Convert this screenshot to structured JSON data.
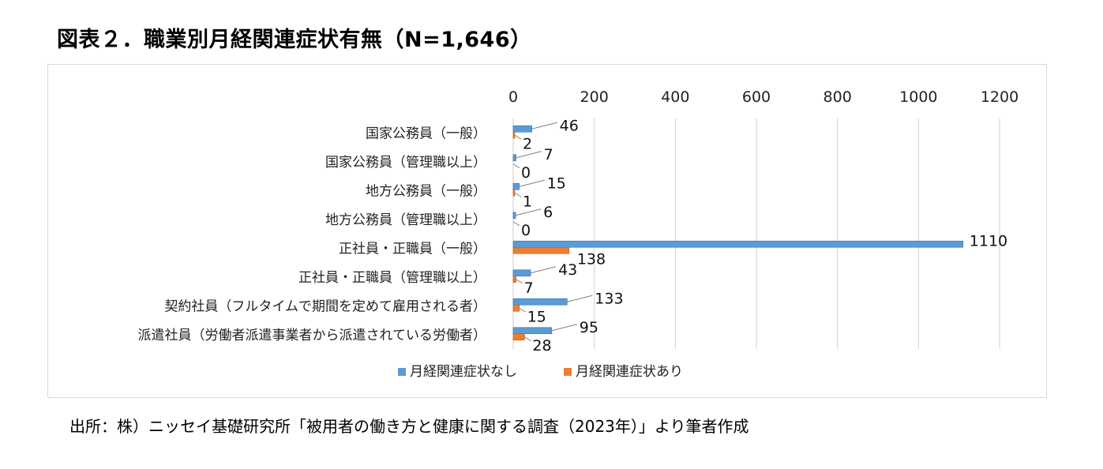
{
  "title": "図表２．職業別月経関連症状有無（N=1,646）",
  "source": "出所：株）ニッセイ基礎研究所「被用者の働き方と健康に関する調査（2023年）」より筆者作成",
  "colors": {
    "series1": "#5b9bd5",
    "series2": "#ed7d31",
    "grid": "#d9d9d9",
    "leader": "#7f7f7f"
  },
  "chart_data": {
    "type": "bar",
    "orientation": "horizontal",
    "title": "",
    "xlabel": "",
    "ylabel": "",
    "xlim": [
      0,
      1200
    ],
    "x_ticks": [
      0,
      200,
      400,
      600,
      800,
      1000,
      1200
    ],
    "x_axis_position": "top",
    "grid": true,
    "legend_position": "bottom",
    "categories": [
      "国家公務員（一般）",
      "国家公務員（管理職以上）",
      "地方公務員（一般）",
      "地方公務員（管理職以上）",
      "正社員・正職員（一般）",
      "正社員・正職員（管理職以上）",
      "契約社員（フルタイムで期間を定めて雇用される者）",
      "派遣社員（労働者派遣事業者から派遣されている労働者）"
    ],
    "series": [
      {
        "name": "月経関連症状なし",
        "values": [
          46,
          7,
          15,
          6,
          1110,
          43,
          133,
          95
        ]
      },
      {
        "name": "月経関連症状あり",
        "values": [
          2,
          0,
          1,
          0,
          138,
          7,
          15,
          28
        ]
      }
    ]
  }
}
